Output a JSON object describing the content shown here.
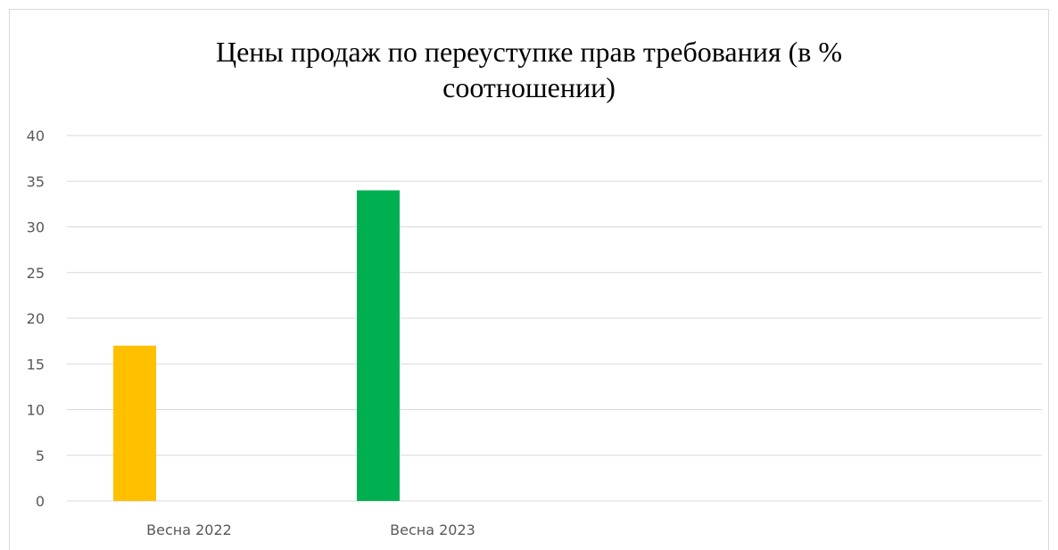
{
  "chart_data": {
    "type": "bar",
    "title": "Цены продаж по переуступке прав требования (в % соотношении)",
    "categories": [
      "Весна 2022",
      "Весна 2023"
    ],
    "values": [
      17,
      34
    ],
    "colors": [
      "#FFC000",
      "#00B050"
    ],
    "ylim": [
      0,
      40
    ],
    "yticks": [
      "0",
      "5",
      "10",
      "15",
      "20",
      "25",
      "30",
      "35",
      "40"
    ],
    "grid": true
  }
}
